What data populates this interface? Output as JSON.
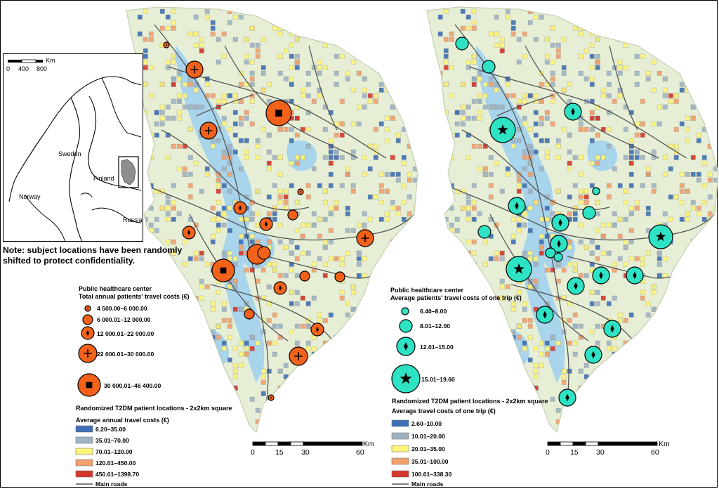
{
  "note": "Note: subject locations have been randomly shifted to protect confidentiality.",
  "inset": {
    "scale_unit": "Km",
    "scale_ticks": [
      "0",
      "400",
      "800"
    ],
    "countries": [
      "Sweden",
      "Finland",
      "Norway",
      "Russia"
    ]
  },
  "left_map": {
    "center_legend": {
      "title1": "Public healthcare center",
      "title2": "Total annual patients' travel costs (€)",
      "classes": [
        {
          "label": "4 500.00–6 000.00",
          "symbol": "dot-icon"
        },
        {
          "label": "6 000.01–12 000.00",
          "symbol": "none"
        },
        {
          "label": "12 000.01–22 000.00",
          "symbol": "diamond-icon"
        },
        {
          "label": "22 000.01–30 000.00",
          "symbol": "cross-icon"
        },
        {
          "label": "30 000.01–46 400.00",
          "symbol": "square-icon"
        }
      ]
    },
    "patient_legend": {
      "title1": "Randomized T2DM patient locations - 2x2km square",
      "title2": "Average annual travel costs (€)",
      "classes": [
        {
          "label": "6.20–35.00",
          "color": "#3f6fb4"
        },
        {
          "label": "35.01–70.00",
          "color": "#9fb3c4"
        },
        {
          "label": "70.01–120.00",
          "color": "#fdf47a"
        },
        {
          "label": "120.01–450.00",
          "color": "#f2a06d"
        },
        {
          "label": "450.01–1398.70",
          "color": "#d6372c"
        }
      ],
      "roads_label": "Main roads"
    },
    "scale": {
      "unit": "Km",
      "ticks": [
        "0",
        "15",
        "30",
        "60"
      ]
    },
    "circle_color": "#f2621a"
  },
  "right_map": {
    "center_legend": {
      "title1": "Public healthcare center",
      "title2": "Average patients' travel costs of one trip (€)",
      "classes": [
        {
          "label": "6.40–8.00",
          "symbol": "none"
        },
        {
          "label": "8.01–12.00",
          "symbol": "none"
        },
        {
          "label": "12.01–15.00",
          "symbol": "diamond-icon"
        },
        {
          "label": "15.01–19.60",
          "symbol": "star-icon"
        }
      ]
    },
    "patient_legend": {
      "title1": "Randomized T2DM patient locations - 2x2km square",
      "title2": "Average travel costs of one trip (€)",
      "classes": [
        {
          "label": "2.60–10.00",
          "color": "#3f6fb4"
        },
        {
          "label": "10.01–20.00",
          "color": "#9fb3c4"
        },
        {
          "label": "20.01–35.00",
          "color": "#fdf47a"
        },
        {
          "label": "35.01–100.00",
          "color": "#f2a06d"
        },
        {
          "label": "100.01–338.30",
          "color": "#d6372c"
        }
      ],
      "roads_label": "Main roads"
    },
    "scale": {
      "unit": "Km",
      "ticks": [
        "0",
        "15",
        "30",
        "60"
      ]
    },
    "circle_color": "#2de3c4"
  },
  "colors": {
    "land": "#e6efd6",
    "water": "#a8d4ec",
    "road": "#555555"
  }
}
